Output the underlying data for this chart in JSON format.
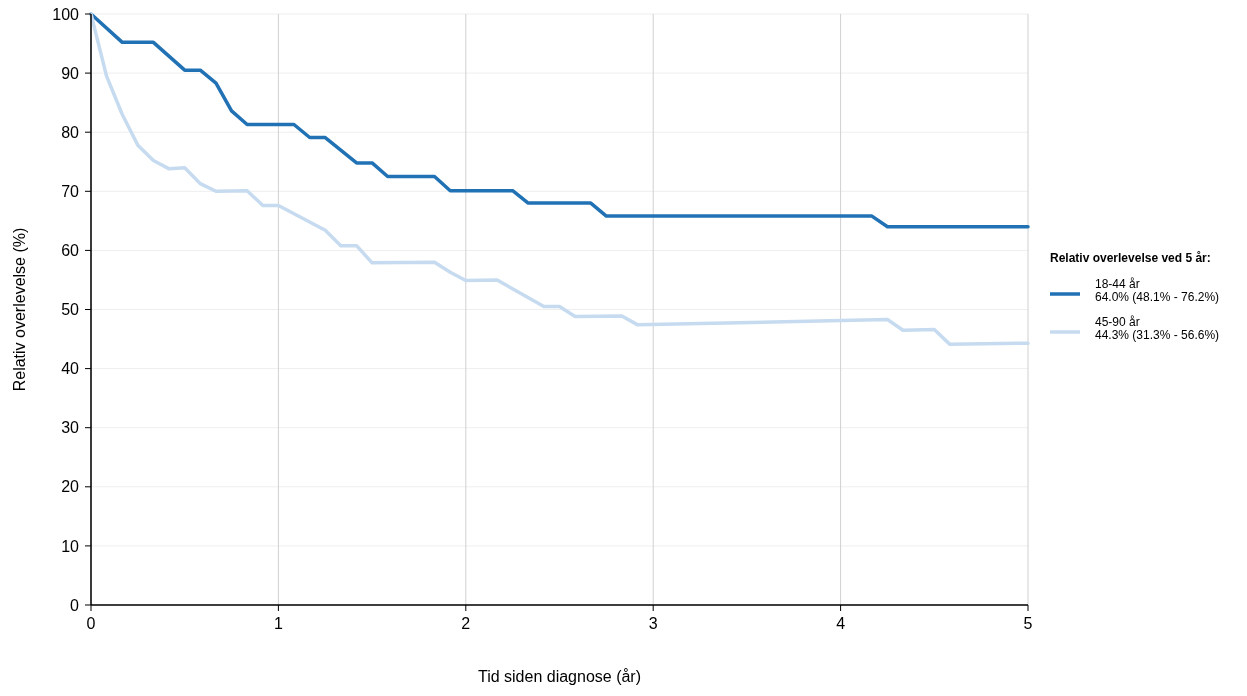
{
  "chart_data": {
    "type": "line",
    "xlabel": "Tid siden diagnose (år)",
    "ylabel": "Relativ overlevelse (%)",
    "legend_title": "Relativ overlevelse ved 5 år:",
    "legend": "right",
    "grid": true,
    "marker": "none",
    "line_style": "solid",
    "xlim": [
      0,
      5
    ],
    "xticks": [
      0,
      1,
      2,
      3,
      4,
      5
    ],
    "ylim": [
      0,
      100
    ],
    "yticks": [
      0,
      10,
      20,
      30,
      40,
      50,
      60,
      70,
      80,
      90,
      100
    ],
    "series": [
      {
        "name": "18-44 år\n64.0% (48.1% - 76.2%)",
        "color": "#2171b5",
        "x": [
          0,
          0.167,
          0.333,
          0.5,
          0.583,
          0.667,
          0.75,
          0.833,
          1.083,
          1.167,
          1.25,
          1.417,
          1.5,
          1.583,
          1.833,
          1.917,
          2.25,
          2.333,
          2.667,
          2.75,
          4.167,
          4.25,
          5
        ],
        "values": [
          100,
          95.2,
          95.2,
          90.5,
          90.5,
          88.3,
          83.6,
          81.3,
          81.3,
          79.1,
          79.1,
          74.8,
          74.8,
          72.5,
          72.5,
          70.1,
          70.1,
          68,
          68,
          65.8,
          65.8,
          64.0,
          64.0
        ]
      },
      {
        "name": "45-90 år\n44.3% (31.3% - 56.6%)",
        "color": "#c6dbef",
        "x": [
          0,
          0.083,
          0.167,
          0.25,
          0.333,
          0.417,
          0.5,
          0.583,
          0.667,
          0.833,
          0.917,
          1.0,
          1.25,
          1.333,
          1.417,
          1.5,
          1.833,
          1.917,
          2.0,
          2.167,
          2.417,
          2.5,
          2.583,
          2.833,
          2.917,
          4.25,
          4.333,
          4.5,
          4.583,
          5
        ],
        "values": [
          100,
          89.5,
          83,
          77.8,
          75.2,
          73.8,
          74,
          71.3,
          70,
          70.1,
          67.6,
          67.6,
          63.4,
          60.8,
          60.8,
          57.9,
          58.0,
          56.3,
          54.9,
          55.0,
          50.5,
          50.5,
          48.8,
          48.9,
          47.4,
          48.3,
          46.5,
          46.6,
          44.1,
          44.3
        ]
      }
    ]
  }
}
